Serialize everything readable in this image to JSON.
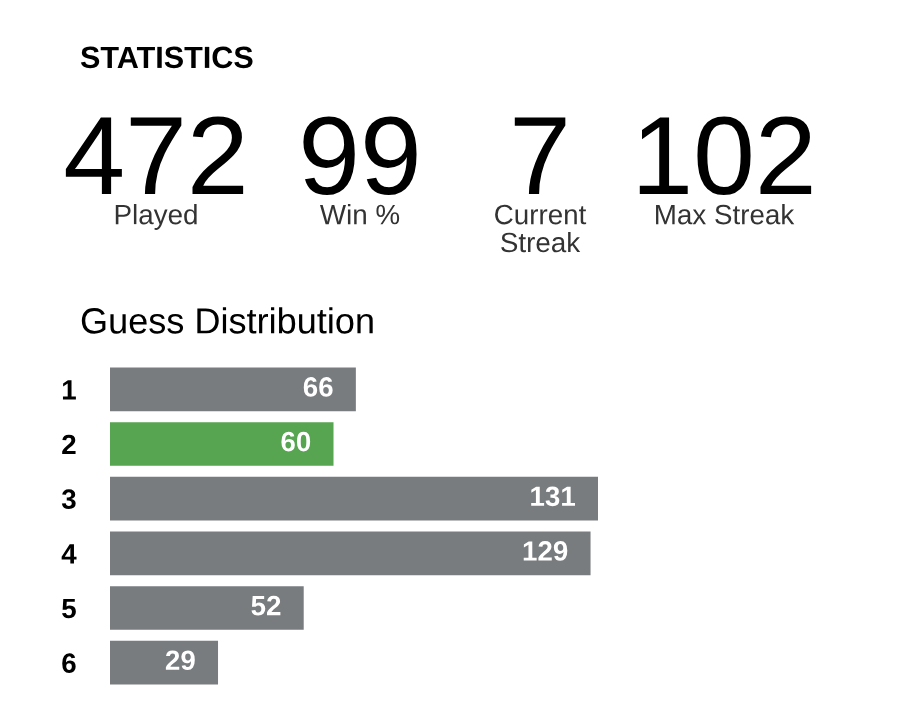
{
  "chart_data": [
    {
      "type": "other",
      "title": "STATISTICS",
      "categories": [
        "Played",
        "Win %",
        "Current\nStreak",
        "Max Streak"
      ],
      "values": [
        472,
        99,
        7,
        102
      ],
      "data_labels": true
    },
    {
      "type": "bar",
      "orientation": "horizontal",
      "title": "Guess Distribution",
      "categories": [
        "1",
        "2",
        "3",
        "4",
        "5",
        "6"
      ],
      "values": [
        66,
        60,
        131,
        129,
        52,
        29
      ],
      "colors": [
        "#787c7f",
        "#57a451",
        "#787c7f",
        "#787c7f",
        "#787c7f",
        "#787c7f"
      ],
      "data_labels": true
    }
  ]
}
